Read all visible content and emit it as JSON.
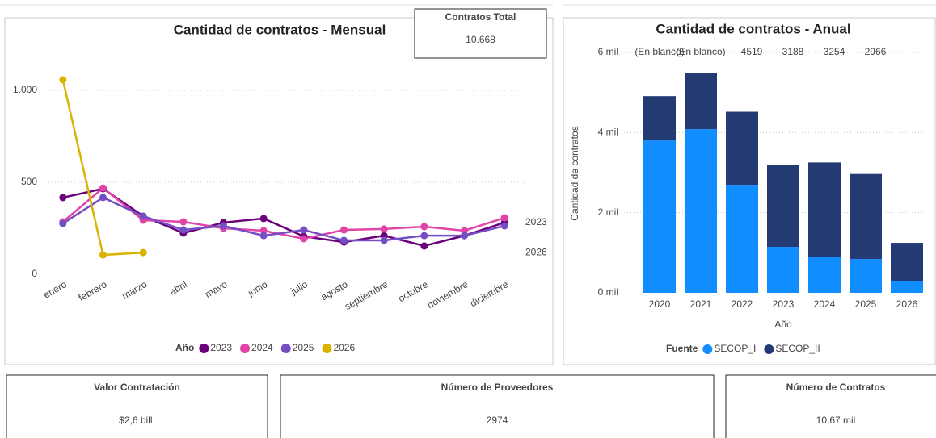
{
  "chart_data": [
    {
      "type": "line",
      "title": "Cantidad de contratos - Mensual",
      "categories": [
        "enero",
        "febrero",
        "marzo",
        "abril",
        "mayo",
        "junio",
        "julio",
        "agosto",
        "septiembre",
        "octubre",
        "noviembre",
        "diciembre"
      ],
      "series": [
        {
          "name": "2023",
          "color": "#6b007b",
          "values": [
            417,
            465,
            316,
            224,
            281,
            303,
            206,
            175,
            210,
            154,
            210,
            281
          ]
        },
        {
          "name": "2024",
          "color": "#e044a7",
          "values": [
            285,
            469,
            294,
            285,
            250,
            237,
            193,
            241,
            246,
            259,
            237,
            307
          ]
        },
        {
          "name": "2025",
          "color": "#744ec2",
          "values": [
            276,
            417,
            316,
            241,
            263,
            210,
            241,
            184,
            184,
            210,
            210,
            263
          ]
        },
        {
          "name": "2026",
          "color": "#d9b300",
          "values": [
            1057,
            105,
            118,
            null,
            null,
            null,
            null,
            null,
            null,
            null,
            null,
            null
          ]
        }
      ],
      "ylim": [
        0,
        1200
      ],
      "yticks": [
        0,
        500,
        {
          "value": 1000,
          "label": "1.000"
        }
      ],
      "grid": true,
      "legend_title": "Año",
      "end_labels": [
        {
          "text": "2023",
          "series": 0
        },
        {
          "text": "2026",
          "series": 3
        }
      ]
    },
    {
      "type": "bar",
      "stacked": true,
      "title": "Cantidad de contratos - Anual",
      "categories": [
        "2020",
        "2021",
        "2022",
        "2023",
        "2024",
        "2025",
        "2026"
      ],
      "series": [
        {
          "name": "SECOP_I",
          "color": "#118dff",
          "values": [
            3803,
            4085,
            2696,
            1147,
            905,
            845,
            302
          ]
        },
        {
          "name": "SECOP_II",
          "color": "#243a73",
          "values": [
            1106,
            1408,
            1823,
            2041,
            2349,
            2121,
            945
          ]
        }
      ],
      "total_labels": [
        "(En blanco)",
        "(En blanco)",
        "4519",
        "3188",
        "3254",
        "2966",
        null
      ],
      "ylim": [
        0,
        6000
      ],
      "yticks": [
        {
          "value": 0,
          "label": "0 mil"
        },
        {
          "value": 2000,
          "label": "2 mil"
        },
        {
          "value": 4000,
          "label": "4 mil"
        },
        {
          "value": 6000,
          "label": "6 mil"
        }
      ],
      "grid": true,
      "xlabel": "Año",
      "ylabel": "Cantidad de contratos",
      "legend_title": "Fuente"
    }
  ],
  "cards": [
    {
      "title": "Contratos Total",
      "value": "10.668"
    },
    {
      "title": "Valor Contratación",
      "value": "$2,6 bill."
    },
    {
      "title": "Número de Proveedores",
      "value": "2974"
    },
    {
      "title": "Número de Contratos",
      "value": "10,67 mil"
    }
  ]
}
